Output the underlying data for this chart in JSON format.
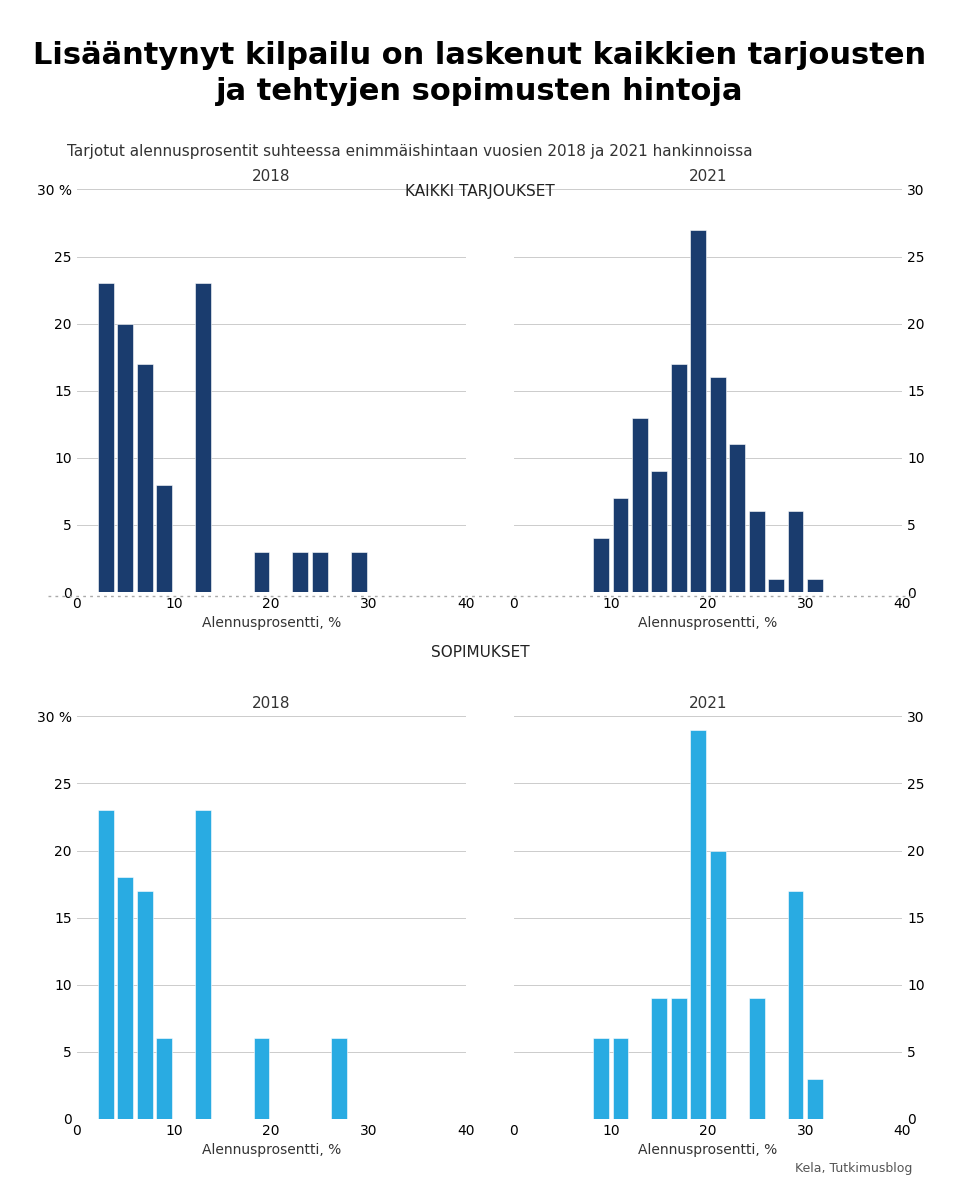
{
  "title": "Lisääntynyt kilpailu on laskenut kaikkien tarjousten\nja tehtyjen sopimusten hintoja",
  "subtitle": "Tarjotut alennusprosentit suhteessa enimmäishintaan vuosien 2018 ja 2021 hankinnoissa",
  "section1_title": "KAIKKI TARJOUKSET",
  "section2_title": "SOPIMUKSET",
  "source": "Kela, Tutkimusblog",
  "xlabel": "Alennusprosentti, %",
  "tarjoukset_2018": {
    "year": "2018",
    "bins": [
      0,
      2,
      4,
      6,
      8,
      10,
      12,
      14,
      16,
      18,
      20,
      22,
      24,
      26,
      28,
      30,
      32,
      34,
      36,
      38,
      40
    ],
    "values": [
      0,
      23,
      20,
      17,
      8,
      0,
      23,
      0,
      0,
      3,
      0,
      3,
      3,
      0,
      3,
      0,
      0,
      0,
      0,
      0
    ],
    "color": "#1a3c6e"
  },
  "tarjoukset_2021": {
    "year": "2021",
    "bins": [
      0,
      2,
      4,
      6,
      8,
      10,
      12,
      14,
      16,
      18,
      20,
      22,
      24,
      26,
      28,
      30,
      32,
      34,
      36,
      38,
      40
    ],
    "values": [
      0,
      0,
      0,
      0,
      4,
      7,
      13,
      9,
      17,
      27,
      16,
      11,
      6,
      1,
      6,
      1,
      0,
      0,
      0,
      0
    ],
    "color": "#1a3c6e"
  },
  "sopimukset_2018": {
    "year": "2018",
    "bins": [
      0,
      2,
      4,
      6,
      8,
      10,
      12,
      14,
      16,
      18,
      20,
      22,
      24,
      26,
      28,
      30,
      32,
      34,
      36,
      38,
      40
    ],
    "values": [
      0,
      23,
      18,
      17,
      6,
      0,
      23,
      0,
      0,
      6,
      0,
      0,
      0,
      6,
      0,
      0,
      0,
      0,
      0,
      0
    ],
    "color": "#29abe2"
  },
  "sopimukset_2021": {
    "year": "2021",
    "bins": [
      0,
      2,
      4,
      6,
      8,
      10,
      12,
      14,
      16,
      18,
      20,
      22,
      24,
      26,
      28,
      30,
      32,
      34,
      36,
      38,
      40
    ],
    "values": [
      0,
      0,
      0,
      0,
      6,
      6,
      0,
      9,
      9,
      29,
      20,
      0,
      9,
      0,
      17,
      3,
      0,
      0,
      0,
      0
    ],
    "color": "#29abe2"
  },
  "ylim": [
    0,
    30
  ],
  "yticks": [
    0,
    5,
    10,
    15,
    20,
    25,
    30
  ],
  "xlim": [
    0,
    40
  ],
  "xticks": [
    0,
    10,
    20,
    30,
    40
  ]
}
